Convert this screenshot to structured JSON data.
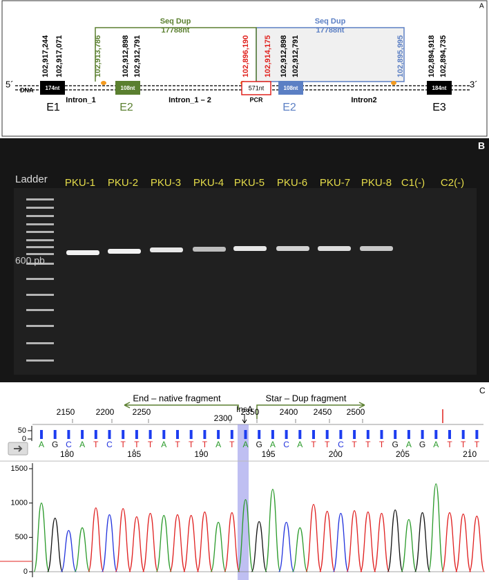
{
  "panel_a": {
    "label": "A",
    "five_prime": "5´",
    "three_prime": "3´",
    "dna": "DNA",
    "seq_dup_left": {
      "title": "Seq Dup",
      "length": "17788nt"
    },
    "seq_dup_right": {
      "title": "Seq Dup",
      "length": "17788nt"
    },
    "exons": [
      {
        "size": "174nt",
        "name": "E1"
      },
      {
        "size": "108nt",
        "name": "E2"
      },
      {
        "size": "108nt",
        "name": "E2"
      },
      {
        "size": "184nt",
        "name": "E3"
      }
    ],
    "pcr": {
      "size": "571nt",
      "label": "PCR"
    },
    "introns": [
      "Intron_1",
      "Intron_1 – 2",
      "Intron2"
    ],
    "coordinates": [
      "102,917,244",
      "102,917,071",
      "102,913,786",
      "102,912,898",
      "102,912,791",
      "102,896,190",
      "102,914,175",
      "102,912,898",
      "102,912,791",
      "102,895,995",
      "102,894,918",
      "102,894,735"
    ]
  },
  "panel_b": {
    "label": "B",
    "ladder": "Ladder",
    "lanes": [
      "PKU-1",
      "PKU-2",
      "PKU-3",
      "PKU-4",
      "PKU-5",
      "PKU-6",
      "PKU-7",
      "PKU-8",
      "C1(-)",
      "C2(-)"
    ],
    "marker": "600 pb"
  },
  "panel_c": {
    "label": "C",
    "left_fragment": "End – native fragment",
    "right_fragment": "Star – Dup fragment",
    "insertion": "InsA",
    "ruler": [
      2150,
      2200,
      2250,
      2300,
      2350,
      2400,
      2450,
      2500
    ],
    "quality_ticks": [
      50,
      0
    ],
    "bases": [
      "A",
      "G",
      "C",
      "A",
      "T",
      "C",
      "T",
      "T",
      "T",
      "A",
      "T",
      "T",
      "T",
      "A",
      "T",
      "A",
      "G",
      "A",
      "C",
      "A",
      "T",
      "T",
      "C",
      "T",
      "T",
      "T",
      "G",
      "A",
      "G",
      "A",
      "T",
      "T",
      "T"
    ],
    "base_ticks": [
      180,
      185,
      190,
      195,
      200,
      205,
      210
    ],
    "intensity_ticks": [
      1500,
      1000,
      500,
      0
    ],
    "peaks": [
      1000,
      780,
      600,
      640,
      930,
      830,
      920,
      800,
      850,
      820,
      830,
      820,
      870,
      720,
      860,
      1050,
      730,
      1200,
      720,
      640,
      980,
      880,
      850,
      890,
      870,
      850,
      900,
      760,
      860,
      1280,
      860,
      840,
      810
    ]
  }
}
